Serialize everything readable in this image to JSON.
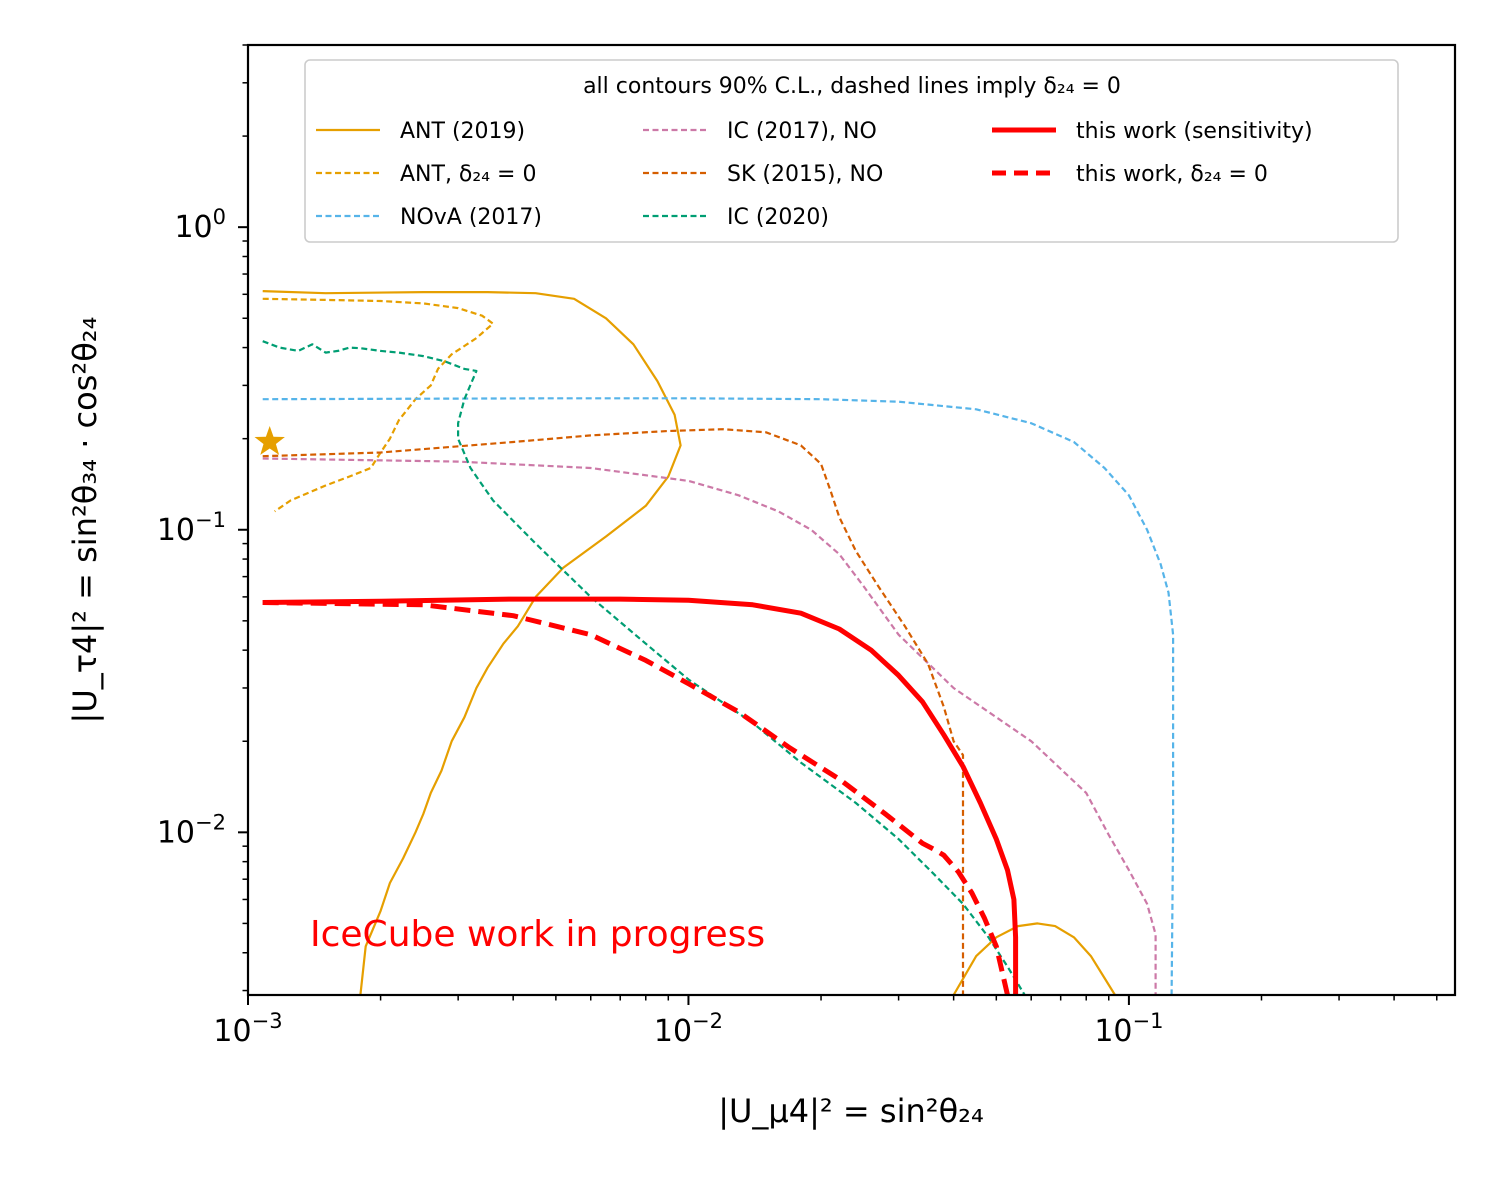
{
  "chart_data": {
    "type": "line",
    "xscale": "log",
    "yscale": "log",
    "xlim": [
      0.001,
      0.55
    ],
    "ylim": [
      0.0029,
      4.0
    ],
    "x_ticks": [
      {
        "value": 0.001,
        "base": "10",
        "exp": "−3"
      },
      {
        "value": 0.01,
        "base": "10",
        "exp": "−2"
      },
      {
        "value": 0.1,
        "base": "10",
        "exp": "−1"
      }
    ],
    "y_ticks": [
      {
        "value": 0.01,
        "base": "10",
        "exp": "−2"
      },
      {
        "value": 0.1,
        "base": "10",
        "exp": "−1"
      },
      {
        "value": 1.0,
        "base": "10",
        "exp": "0"
      }
    ],
    "xlabel": "|U_μ4|² = sin²θ₂₄",
    "ylabel": "|U_τ4|² = sin²θ₃₄ · cos²θ₂₄",
    "grid": false,
    "legend": {
      "placement": "top",
      "title": "all contours 90% C.L., dashed lines imply δ₂₄ = 0",
      "columns": 3
    },
    "annotation": {
      "text": "IceCube work in progress",
      "color": "#ff0000"
    },
    "markers": [
      {
        "name": "ANT (2019) best fit",
        "shape": "star",
        "color": "#e69f00",
        "x": 0.00112,
        "y": 0.195
      }
    ],
    "series": [
      {
        "name": "ANT (2019)",
        "color": "#e69f00",
        "dash": "solid",
        "width": 2.2,
        "x": [
          0.00108,
          0.0015,
          0.0025,
          0.0035,
          0.0045,
          0.0055,
          0.0065,
          0.0075,
          0.0085,
          0.0093,
          0.0096,
          0.009,
          0.008,
          0.0065,
          0.0052,
          0.0045,
          0.0041,
          0.0038,
          0.0035,
          0.0033,
          0.0031,
          0.0029,
          0.00275,
          0.0026,
          0.0025,
          0.0024,
          0.00225,
          0.0021,
          0.002,
          0.00185,
          0.0018
        ],
        "y": [
          0.615,
          0.605,
          0.61,
          0.61,
          0.605,
          0.58,
          0.5,
          0.41,
          0.31,
          0.24,
          0.19,
          0.15,
          0.12,
          0.095,
          0.075,
          0.06,
          0.048,
          0.042,
          0.035,
          0.03,
          0.024,
          0.02,
          0.016,
          0.0135,
          0.0115,
          0.01,
          0.0082,
          0.0068,
          0.0055,
          0.0042,
          0.0029
        ]
      },
      {
        "name": "ANT (2019) second island",
        "legend": false,
        "color": "#e69f00",
        "dash": "solid",
        "width": 2.2,
        "x": [
          0.04,
          0.045,
          0.05,
          0.056,
          0.062,
          0.068,
          0.075,
          0.082,
          0.088,
          0.093
        ],
        "y": [
          0.0029,
          0.0039,
          0.0045,
          0.0049,
          0.005,
          0.0049,
          0.0045,
          0.0039,
          0.0033,
          0.0029
        ]
      },
      {
        "name": "ANT, δ₂₄ = 0",
        "color": "#e69f00",
        "dash": "dashed",
        "width": 2.2,
        "x": [
          0.00108,
          0.0015,
          0.002,
          0.0025,
          0.003,
          0.0034,
          0.0036,
          0.0033,
          0.0029,
          0.0027,
          0.0026,
          0.0024,
          0.0022,
          0.0021,
          0.002,
          0.0019,
          0.0017,
          0.0015,
          0.00125,
          0.00115
        ],
        "y": [
          0.58,
          0.575,
          0.57,
          0.56,
          0.54,
          0.51,
          0.48,
          0.43,
          0.38,
          0.34,
          0.3,
          0.27,
          0.23,
          0.2,
          0.18,
          0.16,
          0.15,
          0.14,
          0.125,
          0.115
        ]
      },
      {
        "name": "NOvA (2017)",
        "color": "#56b4e9",
        "dash": "dashed",
        "width": 2.2,
        "x": [
          0.00108,
          0.005,
          0.01,
          0.02,
          0.03,
          0.045,
          0.06,
          0.075,
          0.088,
          0.1,
          0.11,
          0.118,
          0.123,
          0.126,
          0.126,
          0.125
        ],
        "y": [
          0.27,
          0.272,
          0.272,
          0.27,
          0.265,
          0.25,
          0.225,
          0.195,
          0.16,
          0.13,
          0.1,
          0.077,
          0.062,
          0.045,
          0.01,
          0.0029
        ]
      },
      {
        "name": "IC (2017), NO",
        "color": "#cc79a7",
        "dash": "dashed",
        "width": 2.2,
        "x": [
          0.00108,
          0.003,
          0.006,
          0.01,
          0.013,
          0.016,
          0.019,
          0.022,
          0.025,
          0.03,
          0.04,
          0.06,
          0.08,
          0.09,
          0.1,
          0.11,
          0.115,
          0.115
        ],
        "y": [
          0.172,
          0.168,
          0.16,
          0.145,
          0.13,
          0.115,
          0.1,
          0.083,
          0.065,
          0.045,
          0.03,
          0.02,
          0.0135,
          0.0098,
          0.0075,
          0.0058,
          0.0046,
          0.0029
        ]
      },
      {
        "name": "SK (2015), NO",
        "color": "#d55e00",
        "dash": "dashed",
        "width": 2.2,
        "x": [
          0.00108,
          0.002,
          0.004,
          0.006,
          0.009,
          0.012,
          0.015,
          0.018,
          0.02,
          0.021,
          0.022,
          0.024,
          0.027,
          0.031,
          0.035,
          0.038,
          0.04,
          0.042,
          0.042
        ],
        "y": [
          0.175,
          0.18,
          0.195,
          0.205,
          0.212,
          0.215,
          0.21,
          0.19,
          0.165,
          0.135,
          0.11,
          0.085,
          0.065,
          0.048,
          0.036,
          0.026,
          0.02,
          0.018,
          0.0029
        ]
      },
      {
        "name": "IC (2020)",
        "color": "#009e73",
        "dash": "dashed",
        "width": 2.2,
        "x": [
          0.00108,
          0.00118,
          0.0013,
          0.0014,
          0.0015,
          0.0016,
          0.0017,
          0.0018,
          0.002,
          0.0022,
          0.0025,
          0.0028,
          0.0031,
          0.0033,
          0.0031,
          0.003,
          0.003,
          0.0032,
          0.0036,
          0.0045,
          0.006,
          0.008,
          0.01,
          0.014,
          0.018,
          0.024,
          0.03,
          0.036,
          0.042,
          0.048,
          0.053,
          0.058
        ],
        "y": [
          0.42,
          0.4,
          0.39,
          0.41,
          0.385,
          0.39,
          0.4,
          0.398,
          0.39,
          0.385,
          0.375,
          0.36,
          0.34,
          0.335,
          0.27,
          0.225,
          0.2,
          0.16,
          0.125,
          0.09,
          0.06,
          0.042,
          0.032,
          0.023,
          0.017,
          0.0125,
          0.0095,
          0.0073,
          0.0058,
          0.0045,
          0.0036,
          0.0029
        ]
      },
      {
        "name": "this work (sensitivity)",
        "color": "#ff0000",
        "dash": "solid",
        "width": 5,
        "x": [
          0.00108,
          0.002,
          0.004,
          0.007,
          0.01,
          0.014,
          0.018,
          0.022,
          0.026,
          0.03,
          0.034,
          0.038,
          0.042,
          0.046,
          0.05,
          0.053,
          0.0548,
          0.0553,
          0.0553
        ],
        "y": [
          0.0575,
          0.058,
          0.059,
          0.059,
          0.0585,
          0.0565,
          0.053,
          0.047,
          0.04,
          0.033,
          0.027,
          0.021,
          0.0165,
          0.0125,
          0.0095,
          0.0075,
          0.006,
          0.0045,
          0.0029
        ]
      },
      {
        "name": "this work, δ₂₄ = 0",
        "color": "#ff0000",
        "dash": "dashed",
        "width": 5,
        "x": [
          0.00108,
          0.0025,
          0.004,
          0.006,
          0.008,
          0.01,
          0.013,
          0.017,
          0.022,
          0.028,
          0.034,
          0.036,
          0.038,
          0.041,
          0.044,
          0.047,
          0.05,
          0.053
        ],
        "y": [
          0.0575,
          0.0565,
          0.052,
          0.045,
          0.037,
          0.031,
          0.025,
          0.019,
          0.015,
          0.0115,
          0.0092,
          0.0088,
          0.0084,
          0.0074,
          0.0063,
          0.0052,
          0.0042,
          0.0029
        ]
      }
    ]
  }
}
